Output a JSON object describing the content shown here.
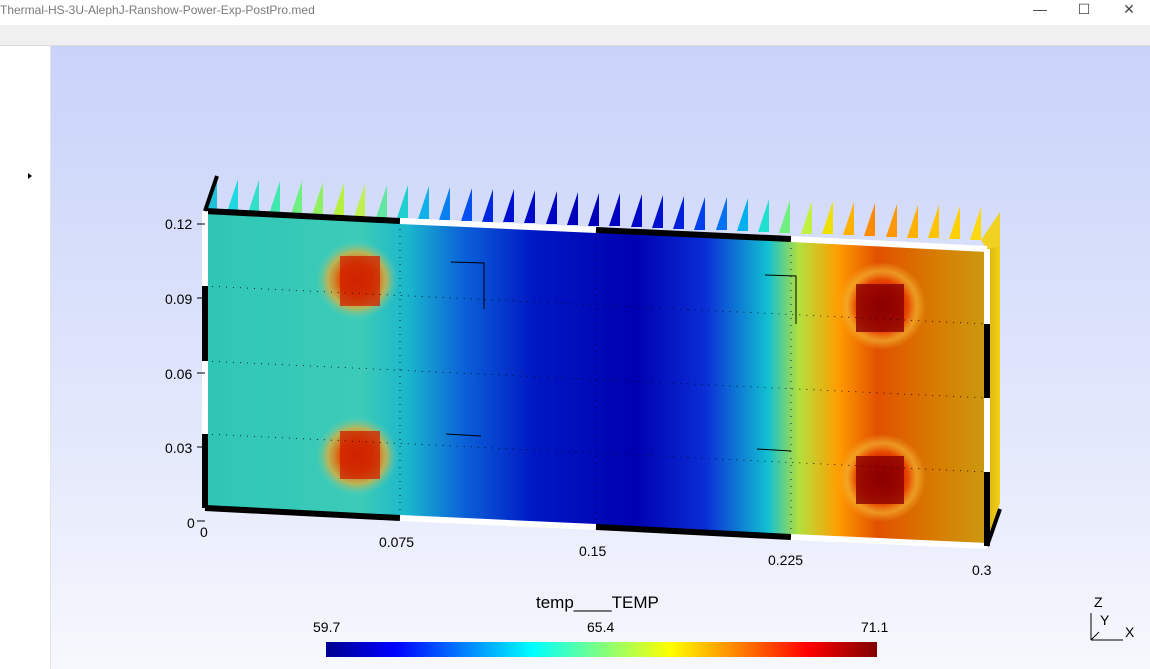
{
  "window": {
    "title": "Thermal-HS-3U-AlephJ-Ranshow-Power-Exp-PostPro.med",
    "minimize_glyph": "—",
    "maximize_glyph": "☐",
    "close_glyph": "✕"
  },
  "plot": {
    "y_ticks": [
      "0.12",
      "0.09",
      "0.06",
      "0.03",
      "0"
    ],
    "x_ticks": [
      "0",
      "0.075",
      "0.15",
      "0.225",
      "0.3"
    ],
    "colorbar": {
      "title": "temp____TEMP",
      "min_label": "59.7",
      "mid_label": "65.4",
      "max_label": "71.1",
      "colormap": "jet"
    },
    "axes_triad": {
      "z": "Z",
      "y": "Y",
      "x": "X"
    }
  },
  "colors": {
    "viewport_top": "#c9d3fa",
    "viewport_bottom": "#f7f8fd",
    "cold": "#0000b4",
    "hot": "#7f0000"
  }
}
